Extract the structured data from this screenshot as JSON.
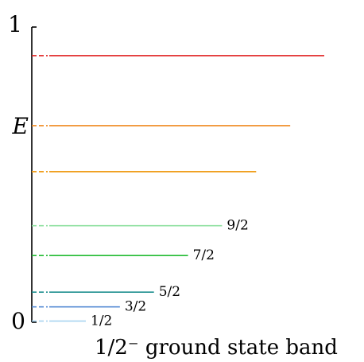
{
  "chart_data": {
    "type": "level-scheme",
    "ylabel": "E",
    "y_ticks": [
      "0",
      "1"
    ],
    "ylim": [
      0,
      1
    ],
    "caption": "1/2⁻ ground state band",
    "levels": [
      {
        "energy": 0.004,
        "label": "1/2",
        "color": "#a8d4f0"
      },
      {
        "energy": 0.052,
        "label": "3/2",
        "color": "#5b8fd6"
      },
      {
        "energy": 0.102,
        "label": "5/2",
        "color": "#1f8f8f"
      },
      {
        "energy": 0.226,
        "label": "7/2",
        "color": "#22bb33"
      },
      {
        "energy": 0.327,
        "label": "9/2",
        "color": "#8fe0a0"
      },
      {
        "energy": 0.51,
        "label": "",
        "color": "#f0a020"
      },
      {
        "energy": 0.666,
        "label": "",
        "color": "#f08a20"
      },
      {
        "energy": 0.903,
        "label": "",
        "color": "#e02020"
      }
    ]
  }
}
